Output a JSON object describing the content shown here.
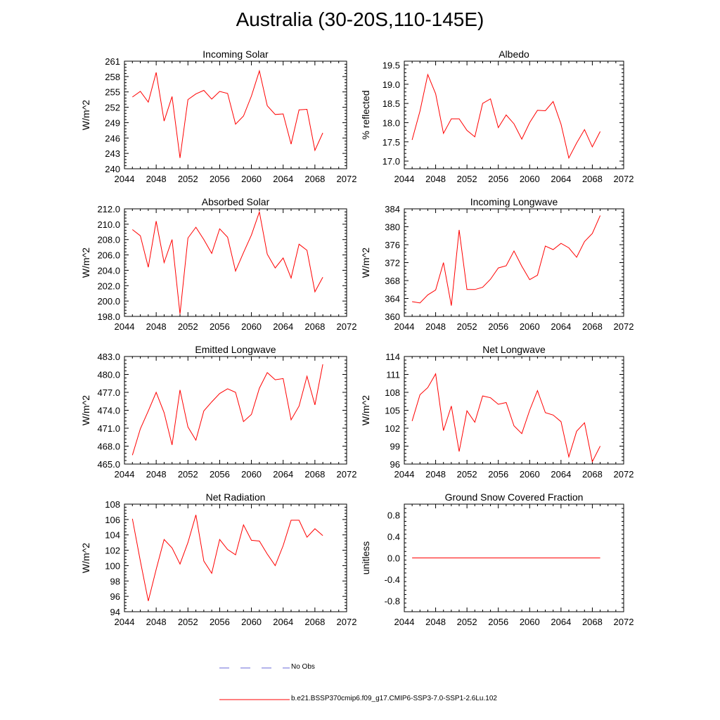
{
  "title": "Australia (30-20S,110-145E)",
  "colors": {
    "model_line": "#ff0000",
    "obs_line": "#6a6ad8",
    "axis": "#000000"
  },
  "legend": {
    "obs_label": "No Obs",
    "model_label": "b.e21.BSSP370cmip6.f09_g17.CMIP6-SSP3-7.0-SSP1-2.6Lu.102"
  },
  "chart_data": [
    {
      "type": "line",
      "title": "Incoming Solar",
      "ylabel": "W/m^2",
      "xlim": [
        2044,
        2072
      ],
      "ylim": [
        240,
        261
      ],
      "xticks": [
        "2044",
        "2048",
        "2052",
        "2056",
        "2060",
        "2064",
        "2068",
        "2072"
      ],
      "yticks": [
        "240",
        "243",
        "246",
        "249",
        "252",
        "255",
        "258",
        "261"
      ],
      "x": [
        2045,
        2046,
        2047,
        2048,
        2049,
        2050,
        2051,
        2052,
        2053,
        2054,
        2055,
        2056,
        2057,
        2058,
        2059,
        2060,
        2061,
        2062,
        2063,
        2064,
        2065,
        2066,
        2067,
        2068,
        2069
      ],
      "values": [
        254.0,
        255.1,
        253.0,
        258.8,
        249.3,
        254.1,
        242.1,
        253.5,
        254.6,
        255.3,
        253.6,
        255.1,
        254.7,
        248.7,
        250.3,
        254.2,
        259.1,
        252.3,
        250.6,
        250.7,
        244.8,
        251.5,
        251.6,
        243.6,
        247.0
      ]
    },
    {
      "type": "line",
      "title": "Albedo",
      "ylabel": "% reflected",
      "xlim": [
        2044,
        2072
      ],
      "ylim": [
        16.8,
        19.6
      ],
      "xticks": [
        "2044",
        "2048",
        "2052",
        "2056",
        "2060",
        "2064",
        "2068",
        "2072"
      ],
      "yticks": [
        "17.0",
        "17.5",
        "18.0",
        "18.5",
        "19.0",
        "19.5"
      ],
      "x": [
        2045,
        2046,
        2047,
        2048,
        2049,
        2050,
        2051,
        2052,
        2053,
        2054,
        2055,
        2056,
        2057,
        2058,
        2059,
        2060,
        2061,
        2062,
        2063,
        2064,
        2065,
        2066,
        2067,
        2068,
        2069
      ],
      "values": [
        17.55,
        18.3,
        19.25,
        18.75,
        17.72,
        18.1,
        18.1,
        17.8,
        17.63,
        18.5,
        18.62,
        17.87,
        18.2,
        17.97,
        17.57,
        18.0,
        18.32,
        18.31,
        18.55,
        17.96,
        17.08,
        17.47,
        17.82,
        17.37,
        17.77
      ]
    },
    {
      "type": "line",
      "title": "Absorbed Solar",
      "ylabel": "W/m^2",
      "xlim": [
        2044,
        2072
      ],
      "ylim": [
        198.0,
        212.0
      ],
      "xticks": [
        "2044",
        "2048",
        "2052",
        "2056",
        "2060",
        "2064",
        "2068",
        "2072"
      ],
      "yticks": [
        "198.0",
        "200.0",
        "202.0",
        "204.0",
        "206.0",
        "208.0",
        "210.0",
        "212.0"
      ],
      "x": [
        2045,
        2046,
        2047,
        2048,
        2049,
        2050,
        2051,
        2052,
        2053,
        2054,
        2055,
        2056,
        2057,
        2058,
        2059,
        2060,
        2061,
        2062,
        2063,
        2064,
        2065,
        2066,
        2067,
        2068,
        2069
      ],
      "values": [
        209.3,
        208.5,
        204.4,
        210.4,
        205.0,
        208.0,
        198.3,
        208.2,
        209.6,
        208.0,
        206.2,
        209.4,
        208.3,
        203.9,
        206.3,
        208.6,
        211.6,
        206.1,
        204.3,
        205.6,
        203.0,
        207.4,
        206.6,
        201.2,
        203.1
      ]
    },
    {
      "type": "line",
      "title": "Incoming Longwave",
      "ylabel": "W/m^2",
      "xlim": [
        2044,
        2072
      ],
      "ylim": [
        360,
        384
      ],
      "xticks": [
        "2044",
        "2048",
        "2052",
        "2056",
        "2060",
        "2064",
        "2068",
        "2072"
      ],
      "yticks": [
        "360",
        "364",
        "368",
        "372",
        "376",
        "380",
        "384"
      ],
      "x": [
        2045,
        2046,
        2047,
        2048,
        2049,
        2050,
        2051,
        2052,
        2053,
        2054,
        2055,
        2056,
        2057,
        2058,
        2059,
        2060,
        2061,
        2062,
        2063,
        2064,
        2065,
        2066,
        2067,
        2068,
        2069
      ],
      "values": [
        363.3,
        363.0,
        364.8,
        365.9,
        372.0,
        362.4,
        379.3,
        366.0,
        366.0,
        366.5,
        368.3,
        370.8,
        371.3,
        374.6,
        371.2,
        368.2,
        369.2,
        375.7,
        374.9,
        376.3,
        375.3,
        373.2,
        376.7,
        378.5,
        382.5
      ]
    },
    {
      "type": "line",
      "title": "Emitted Longwave",
      "ylabel": "W/m^2",
      "xlim": [
        2044,
        2072
      ],
      "ylim": [
        465.0,
        483.0
      ],
      "xticks": [
        "2044",
        "2048",
        "2052",
        "2056",
        "2060",
        "2064",
        "2068",
        "2072"
      ],
      "yticks": [
        "465.0",
        "468.0",
        "471.0",
        "474.0",
        "477.0",
        "480.0",
        "483.0"
      ],
      "x": [
        2045,
        2046,
        2047,
        2048,
        2049,
        2050,
        2051,
        2052,
        2053,
        2054,
        2055,
        2056,
        2057,
        2058,
        2059,
        2060,
        2061,
        2062,
        2063,
        2064,
        2065,
        2066,
        2067,
        2068,
        2069
      ],
      "values": [
        466.5,
        470.9,
        473.9,
        477.0,
        473.6,
        468.2,
        477.4,
        471.2,
        469.0,
        473.9,
        475.4,
        476.8,
        477.6,
        477.0,
        472.1,
        473.3,
        477.7,
        480.3,
        479.1,
        479.3,
        472.4,
        474.7,
        479.7,
        474.9,
        481.7
      ]
    },
    {
      "type": "line",
      "title": "Net Longwave",
      "ylabel": "W/m^2",
      "xlim": [
        2044,
        2072
      ],
      "ylim": [
        96,
        114
      ],
      "xticks": [
        "2044",
        "2048",
        "2052",
        "2056",
        "2060",
        "2064",
        "2068",
        "2072"
      ],
      "yticks": [
        "96",
        "99",
        "102",
        "105",
        "108",
        "111",
        "114"
      ],
      "x": [
        2045,
        2046,
        2047,
        2048,
        2049,
        2050,
        2051,
        2052,
        2053,
        2054,
        2055,
        2056,
        2057,
        2058,
        2059,
        2060,
        2061,
        2062,
        2063,
        2064,
        2065,
        2066,
        2067,
        2068,
        2069
      ],
      "values": [
        103.2,
        107.6,
        108.8,
        111.1,
        101.6,
        105.7,
        98.1,
        104.9,
        103.0,
        107.4,
        107.1,
        106.0,
        106.3,
        102.4,
        101.1,
        105.0,
        108.3,
        104.6,
        104.2,
        103.1,
        97.2,
        101.5,
        102.9,
        96.4,
        99.0
      ]
    },
    {
      "type": "line",
      "title": "Net Radiation",
      "ylabel": "W/m^2",
      "xlim": [
        2044,
        2072
      ],
      "ylim": [
        94,
        108
      ],
      "xticks": [
        "2044",
        "2048",
        "2052",
        "2056",
        "2060",
        "2064",
        "2068",
        "2072"
      ],
      "yticks": [
        "94",
        "96",
        "98",
        "100",
        "102",
        "104",
        "106",
        "108"
      ],
      "x": [
        2045,
        2046,
        2047,
        2048,
        2049,
        2050,
        2051,
        2052,
        2053,
        2054,
        2055,
        2056,
        2057,
        2058,
        2059,
        2060,
        2061,
        2062,
        2063,
        2064,
        2065,
        2066,
        2067,
        2068,
        2069
      ],
      "values": [
        106.1,
        100.6,
        95.4,
        99.5,
        103.4,
        102.3,
        100.2,
        103.0,
        106.6,
        100.6,
        99.0,
        103.4,
        102.1,
        101.4,
        105.3,
        103.3,
        103.2,
        101.5,
        100.0,
        102.6,
        105.9,
        105.9,
        103.7,
        104.8,
        103.9
      ]
    },
    {
      "type": "line",
      "title": "Ground Snow Covered Fraction",
      "ylabel": "unitless",
      "xlim": [
        2044,
        2072
      ],
      "ylim": [
        -1.0,
        1.0
      ],
      "xticks": [
        "2044",
        "2048",
        "2052",
        "2056",
        "2060",
        "2064",
        "2068",
        "2072"
      ],
      "yticks": [
        "-0.8",
        "-0.4",
        "0.0",
        "0.4",
        "0.8"
      ],
      "x": [
        2045,
        2046,
        2047,
        2048,
        2049,
        2050,
        2051,
        2052,
        2053,
        2054,
        2055,
        2056,
        2057,
        2058,
        2059,
        2060,
        2061,
        2062,
        2063,
        2064,
        2065,
        2066,
        2067,
        2068,
        2069
      ],
      "values": [
        0,
        0,
        0,
        0,
        0,
        0,
        0,
        0,
        0,
        0,
        0,
        0,
        0,
        0,
        0,
        0,
        0,
        0,
        0,
        0,
        0,
        0,
        0,
        0,
        0
      ]
    }
  ]
}
